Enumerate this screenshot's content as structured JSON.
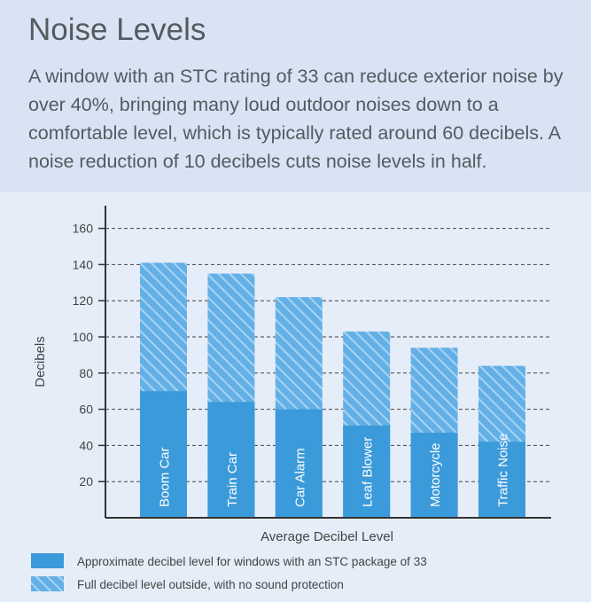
{
  "header": {
    "title": "Noise Levels",
    "description": "A window with an STC rating of 33 can reduce exterior noise by over 40%, bringing many loud outdoor noises down to a comfortable level, which is typically rated around 60 decibels. A noise reduction of 10 decibels cuts noise levels in half."
  },
  "colors": {
    "solid_bar": "#3b9ad9",
    "hatch_bg": "#63b0e6",
    "hatch_line": "#a9d3f2",
    "grid": "#444444"
  },
  "chart_data": {
    "type": "bar",
    "categories": [
      "Boom Car",
      "Train Car",
      "Car Alarm",
      "Leaf Blower",
      "Motorcycle",
      "Traffic Noise"
    ],
    "series": [
      {
        "name": "Approximate decibel level for windows with an STC package of 33",
        "style": "solid",
        "values": [
          70,
          64,
          60,
          51,
          47,
          42
        ]
      },
      {
        "name": "Full decibel level outside, with no sound protection",
        "style": "hatched",
        "values": [
          141,
          135,
          122,
          103,
          94,
          84
        ]
      }
    ],
    "xlabel": "Average Decibel Level",
    "ylabel": "Decibels",
    "ylim": [
      0,
      170
    ],
    "yticks": [
      20,
      40,
      60,
      80,
      100,
      120,
      140,
      160
    ],
    "grid": true,
    "grid_style": "dashed",
    "legend_position": "bottom-left",
    "category_labels_inside_bars": true
  }
}
